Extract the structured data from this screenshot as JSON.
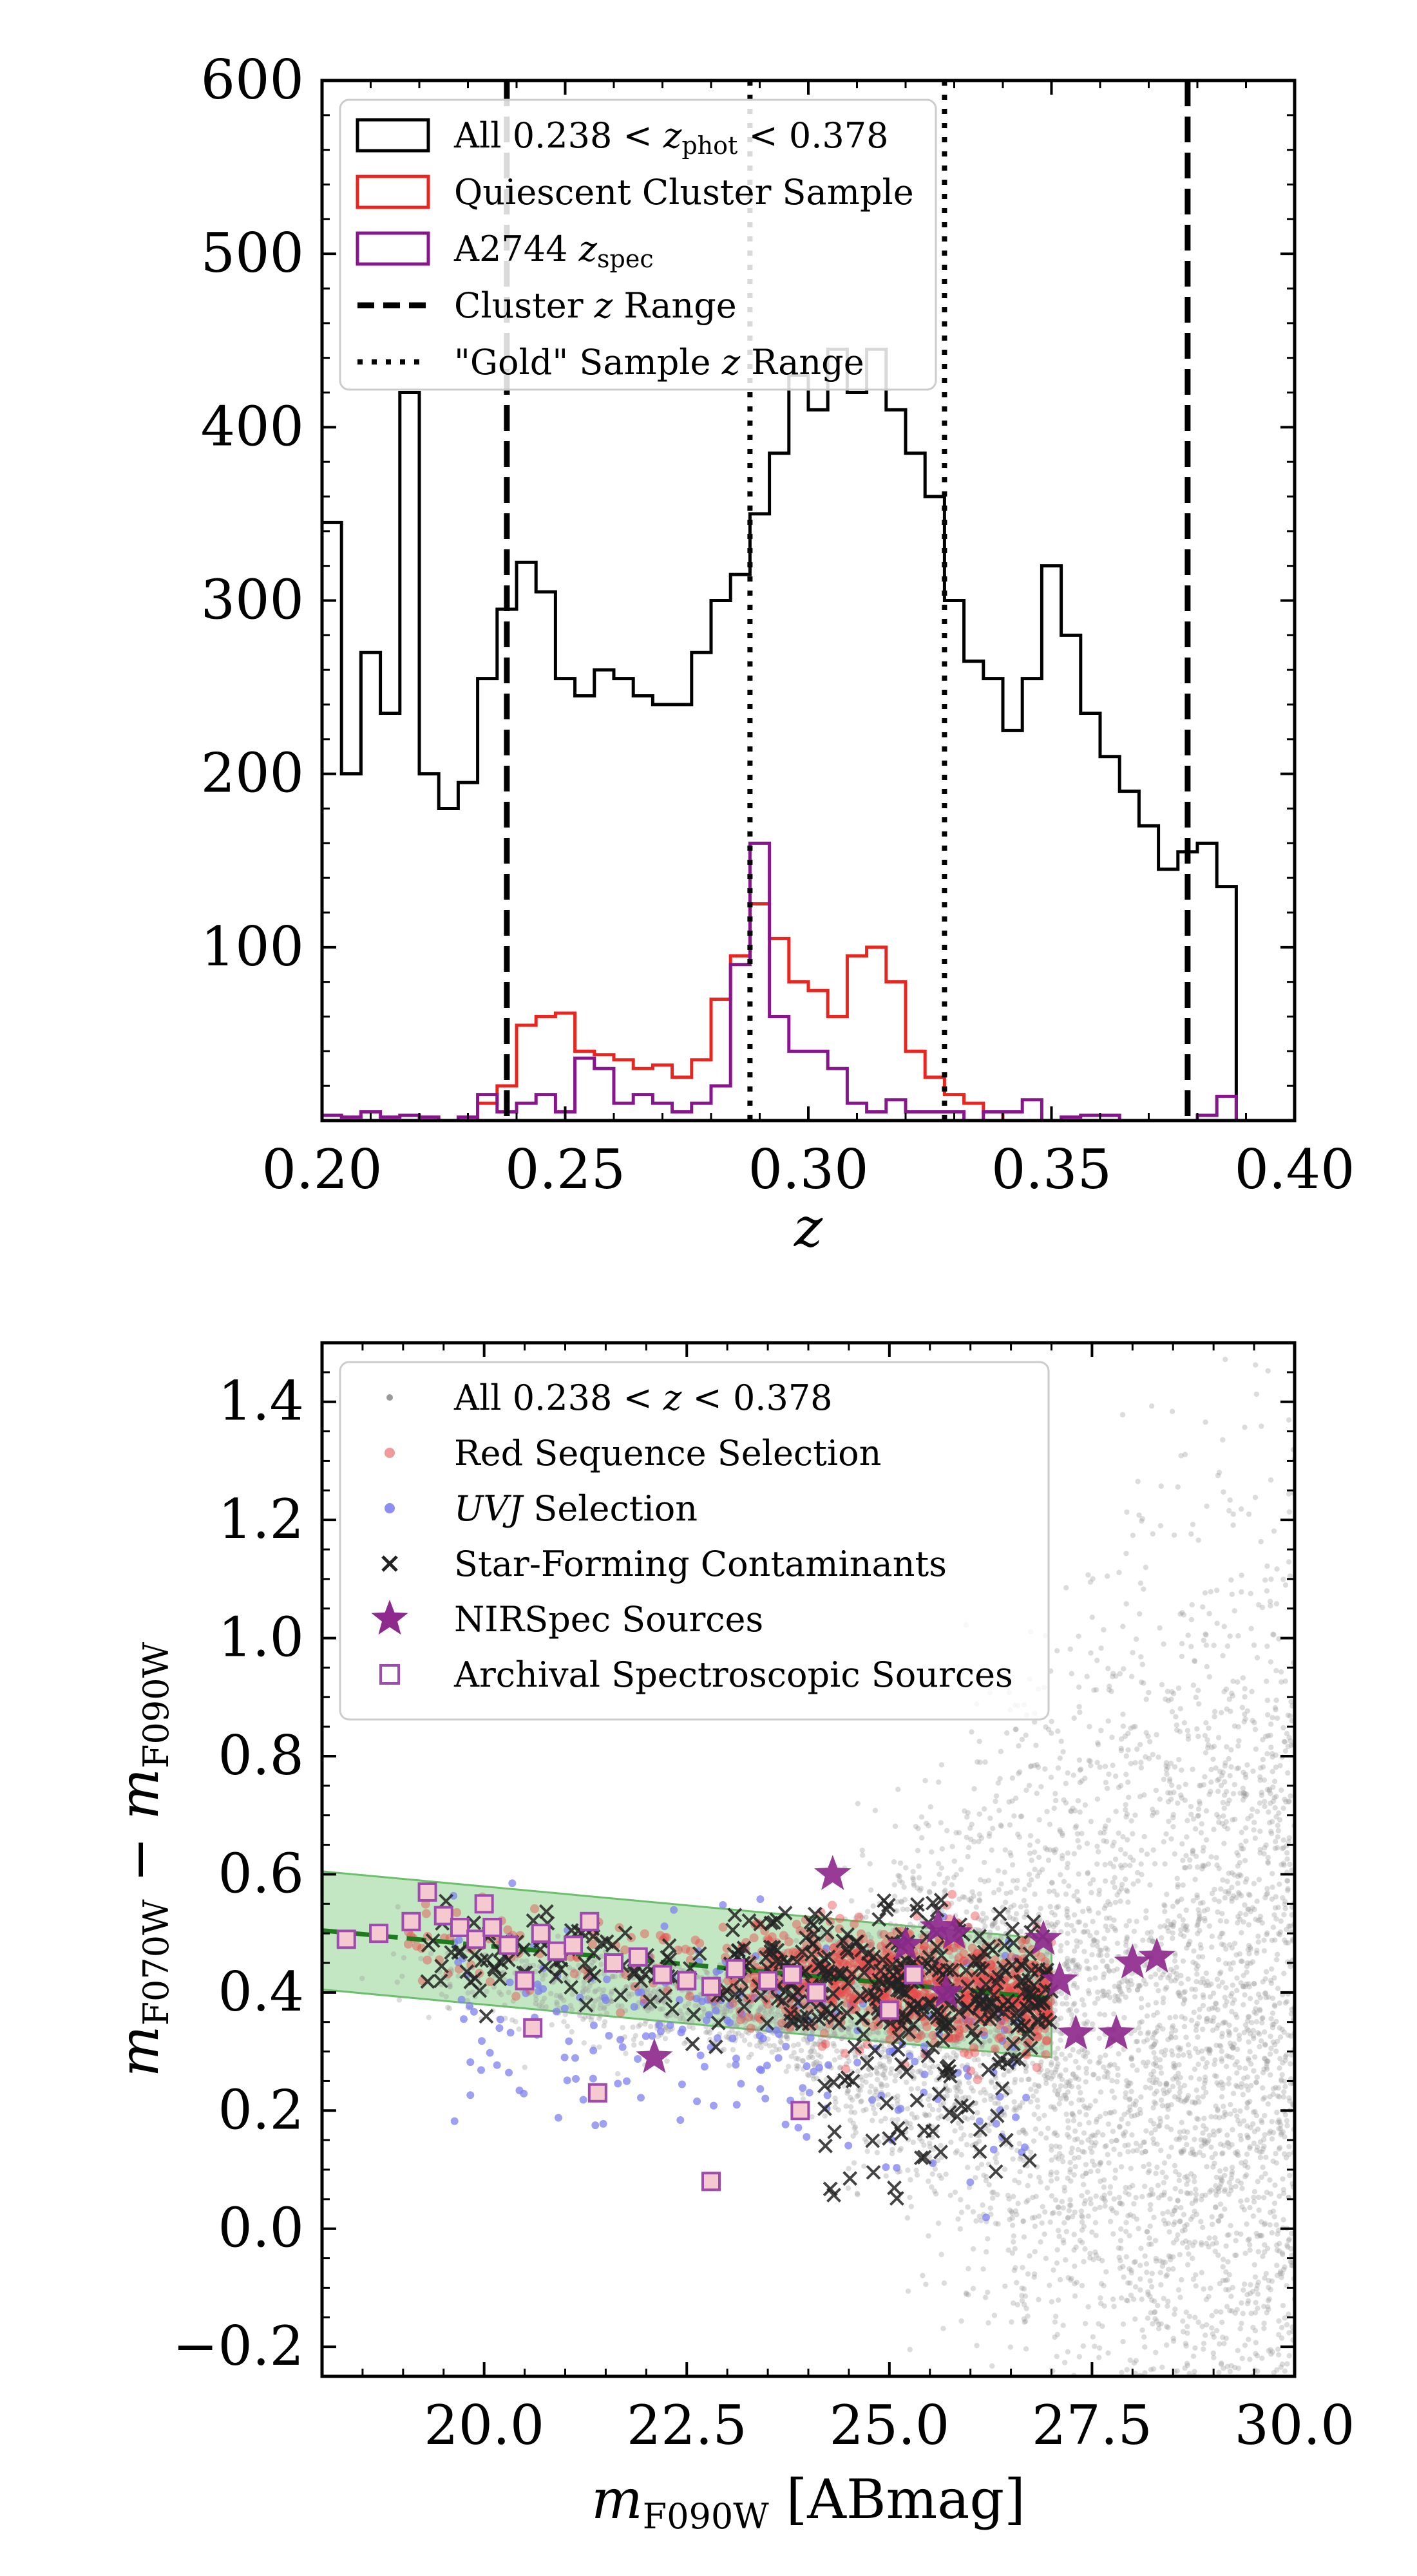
{
  "chart_data": [
    {
      "type": "histogram",
      "xlabel": "z",
      "ylabel": "",
      "xlim": [
        0.2,
        0.4
      ],
      "ylim": [
        0,
        600
      ],
      "x_ticks": [
        "0.20",
        "0.25",
        "0.30",
        "0.35",
        "0.40"
      ],
      "y_ticks": [
        "100",
        "200",
        "300",
        "400",
        "500",
        "600"
      ],
      "bin_width": 0.004,
      "bin_edges_start": 0.2,
      "series": [
        {
          "name": "All 0.238 < z_phot < 0.378",
          "color": "#000000",
          "values": [
            345,
            200,
            270,
            235,
            420,
            200,
            180,
            195,
            255,
            295,
            322,
            305,
            255,
            245,
            260,
            255,
            245,
            240,
            240,
            270,
            300,
            315,
            350,
            385,
            430,
            410,
            445,
            420,
            445,
            410,
            385,
            360,
            300,
            265,
            255,
            225,
            255,
            320,
            280,
            235,
            210,
            190,
            170,
            145,
            155,
            160,
            135
          ]
        },
        {
          "name": "Quiescent Cluster Sample",
          "color": "#e8251f",
          "values": [
            0,
            0,
            0,
            0,
            0,
            0,
            0,
            0,
            10,
            20,
            55,
            60,
            62,
            40,
            38,
            35,
            30,
            32,
            25,
            35,
            70,
            95,
            125,
            105,
            80,
            75,
            60,
            95,
            100,
            80,
            40,
            25,
            15,
            10,
            5,
            0,
            0,
            0,
            0,
            0,
            0,
            0,
            0,
            0,
            0,
            0,
            0
          ]
        },
        {
          "name": "A2744 z_spec",
          "color": "#87168c",
          "values": [
            3,
            2,
            5,
            2,
            3,
            2,
            0,
            2,
            15,
            5,
            10,
            15,
            5,
            36,
            30,
            10,
            15,
            10,
            5,
            10,
            20,
            90,
            160,
            60,
            40,
            40,
            30,
            10,
            5,
            12,
            5,
            5,
            5,
            0,
            5,
            5,
            12,
            0,
            2,
            3,
            3,
            0,
            0,
            0,
            0,
            3,
            14
          ]
        }
      ],
      "vlines": [
        {
          "name": "Cluster z Range",
          "style": "dashed",
          "x": [
            0.238,
            0.378
          ]
        },
        {
          "name": "\"Gold\" Sample z Range",
          "style": "dotted",
          "x": [
            0.288,
            0.328
          ]
        }
      ],
      "legend": {
        "position": "upper-left",
        "entries": [
          {
            "label_prefix": "All ",
            "label_math": "0.238 < z_phot < 0.378",
            "kind": "step",
            "color": "#000000"
          },
          {
            "label_prefix": "Quiescent Cluster Sample",
            "label_math": "",
            "kind": "step",
            "color": "#e8251f"
          },
          {
            "label_prefix": "A2744 ",
            "label_math": "z_spec",
            "kind": "step",
            "color": "#87168c"
          },
          {
            "label_prefix": "Cluster ",
            "label_math": "z",
            "label_suffix": " Range",
            "kind": "dashed",
            "color": "#000000"
          },
          {
            "label_prefix": "\"Gold\" Sample ",
            "label_math": "z",
            "label_suffix": " Range",
            "kind": "dotted",
            "color": "#000000"
          }
        ]
      }
    },
    {
      "type": "scatter",
      "xlabel": "m_F090W [ABmag]",
      "ylabel": "m_F070W − m_F090W",
      "xlim": [
        18,
        30
      ],
      "ylim": [
        -0.25,
        1.5
      ],
      "x_ticks": [
        "20.0",
        "22.5",
        "25.0",
        "27.5",
        "30.0"
      ],
      "y_ticks": [
        "−0.2",
        "0.0",
        "0.2",
        "0.4",
        "0.6",
        "0.8",
        "1.0",
        "1.2",
        "1.4"
      ],
      "red_sequence_fit": {
        "x": [
          18,
          27
        ],
        "y": [
          0.505,
          0.39
        ],
        "width": 0.1,
        "band_color": "#8fd48f",
        "line_color": "#1f7a1f"
      },
      "nirspec_sources": {
        "x": [
          24.3,
          25.6,
          25.8,
          26.9,
          27.1,
          27.3,
          27.8,
          28.0,
          28.3,
          22.1,
          25.2,
          25.7
        ],
        "y": [
          0.6,
          0.51,
          0.5,
          0.49,
          0.42,
          0.33,
          0.33,
          0.45,
          0.46,
          0.29,
          0.48,
          0.4
        ]
      },
      "archival_sources": {
        "x": [
          18.3,
          18.7,
          19.1,
          19.3,
          19.5,
          19.7,
          19.9,
          20.1,
          20.3,
          20.5,
          20.7,
          20.9,
          21.1,
          21.3,
          21.6,
          21.9,
          22.2,
          22.5,
          22.8,
          23.1,
          23.5,
          23.8,
          24.1,
          20.6,
          21.4,
          22.8,
          23.9,
          25.0,
          25.3,
          20.0
        ],
        "y": [
          0.49,
          0.5,
          0.52,
          0.57,
          0.53,
          0.51,
          0.49,
          0.51,
          0.48,
          0.42,
          0.5,
          0.47,
          0.48,
          0.52,
          0.45,
          0.46,
          0.43,
          0.42,
          0.41,
          0.44,
          0.42,
          0.43,
          0.4,
          0.34,
          0.23,
          0.08,
          0.2,
          0.37,
          0.43,
          0.55
        ]
      },
      "legend": {
        "position": "upper-left",
        "entries": [
          {
            "label_prefix": "All ",
            "label_math": "0.238 < z < 0.378",
            "kind": "dot",
            "color": "#9a9a9a"
          },
          {
            "label_prefix": "Red Sequence Selection",
            "label_math": "",
            "kind": "dot",
            "color": "#f19a9a"
          },
          {
            "label_prefix": "UVJ",
            "label_math": "",
            "label_suffix": " Selection",
            "kind": "dot",
            "color": "#8d8ff0",
            "italic_prefix": true
          },
          {
            "label_prefix": "Star-Forming Contaminants",
            "label_math": "",
            "kind": "cross",
            "color": "#222222"
          },
          {
            "label_prefix": "NIRSpec Sources",
            "label_math": "",
            "kind": "star",
            "color": "#8e2a8e"
          },
          {
            "label_prefix": "Archival Spectroscopic Sources",
            "label_math": "",
            "kind": "square",
            "color": "#a04ab0"
          }
        ]
      }
    }
  ]
}
